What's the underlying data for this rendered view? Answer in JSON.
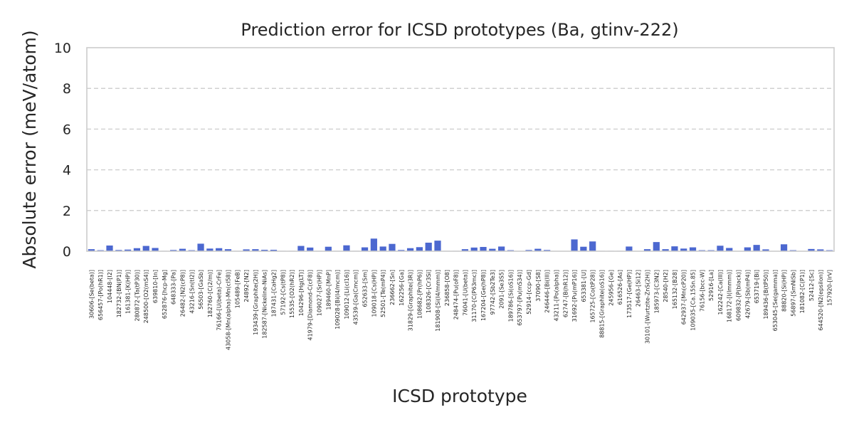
{
  "chart_data": {
    "type": "bar",
    "title": "Prediction error for ICSD prototypes (Ba, gtinv-222)",
    "xlabel": "ICSD prototype",
    "ylabel": "Absolute error (meV/atom)",
    "ylim": [
      0,
      10
    ],
    "yticks": [
      0,
      2,
      4,
      6,
      8,
      10
    ],
    "grid": true,
    "bar_color": "#4c68d0",
    "grid_color": "#cccccc",
    "categories": [
      "30606-[Se(beta)]",
      "656457-[Po(hR1)]",
      "104448-[I2]",
      "182732-[BN(P1)]",
      "161381-[K(HP)]",
      "280872-[Ta(tP30)]",
      "248500-[O2(mS4)]",
      "639810-[In]",
      "652876-[hcp-Mg]",
      "648333-[Pa]",
      "26482-[N2(cP8)]",
      "43216-[Sn(tI2)]",
      "56503-[GaSb]",
      "182760-[C(2/m)]",
      "76166-[U(beta)-CrFe]",
      "43058-[Mn(alpha)-Mn(cI58)]",
      "105489-[FeB]",
      "24892-[N2]",
      "193439-[Graphite(2H)]",
      "182587-[Nickeline-NiAs]",
      "187431-[CaHg2]",
      "57192-[Cs(tP8)]",
      "15535-[O2(hR2)]",
      "104296-[Hg(LT)]",
      "41979-[Diamond-C(cF8)]",
      "109027-[Sr(HP)]",
      "189460-[MnP]",
      "109028-[Bi(I4/mcm)]",
      "109012-[Li(cI16)]",
      "43539-[Ga(Cmcm)]",
      "652633-[Sm]",
      "109018-[Cs(HP)]",
      "52501-[Te(mP4)]",
      "236662-[Sn]",
      "162256-[Ga]",
      "31829-[Graphite(3R)]",
      "108682-[Pr(hP6)]",
      "108326-[Cr3Si]",
      "181908-[Si(I4/mmm)]",
      "236858-[O8]",
      "248474-[Pu(oF8)]",
      "76041-[U(beta)]",
      "31170-[C(P63mc)]",
      "167204-[Ge(hP8)]",
      "97742-[Sb2Te3]",
      "2091-[Se3S5]",
      "189786-[Si(oS16)]",
      "653797-[Pu(mS34)]",
      "52914-[ccp-Gd]",
      "37090-[S8]",
      "246446-[Bi(III)]",
      "43211-[Po(alpha)]",
      "62747-[B(hR12)]",
      "31692-[Pu(mP16)]",
      "653381-[U]",
      "165725-[Co(tP28)]",
      "88815-[Graphite(oS16)]",
      "245956-[Ge]",
      "616526-[As]",
      "173517-[Ge(HP)]",
      "26463-[Si12]",
      "30101-[Wurtzite-ZnS(2H)]",
      "185973-[C3N2]",
      "28540-[H2]",
      "165132-[B28]",
      "642937-[Mn(cP20)]",
      "109035-[Ca.15Sn.85]",
      "76156-[bcc-W]",
      "52916-[La]",
      "162242-[Ca(III)]",
      "168172-[I(Immm)]",
      "609832-[P(black)]",
      "42679-[Sb(mP4)]",
      "653719-[Bi]",
      "189436-[B(tP50)]",
      "653045-[Se(gamma)]",
      "88820-[Si(HP)]",
      "56897-[SmNiSb]",
      "181082-[C(P1)]",
      "52412-[Sc]",
      "644520-[N2(epsilon)]",
      "157920-[IrV]"
    ],
    "values": [
      0.1,
      0.05,
      0.28,
      0.06,
      0.08,
      0.15,
      0.26,
      0.16,
      0.02,
      0.06,
      0.12,
      0.05,
      0.37,
      0.13,
      0.15,
      0.1,
      0.02,
      0.09,
      0.1,
      0.07,
      0.07,
      0.02,
      0.02,
      0.26,
      0.18,
      0.02,
      0.22,
      0.02,
      0.29,
      0.02,
      0.19,
      0.62,
      0.23,
      0.36,
      0.06,
      0.15,
      0.2,
      0.42,
      0.52,
      0.02,
      0.02,
      0.1,
      0.18,
      0.21,
      0.12,
      0.23,
      0.05,
      0.01,
      0.06,
      0.12,
      0.06,
      0.01,
      0.01,
      0.58,
      0.22,
      0.48,
      0.02,
      0.02,
      0.02,
      0.23,
      0.01,
      0.1,
      0.45,
      0.1,
      0.24,
      0.13,
      0.19,
      0.05,
      0.05,
      0.27,
      0.16,
      0.01,
      0.19,
      0.31,
      0.09,
      0.01,
      0.34,
      0.05,
      0.01,
      0.11,
      0.09,
      0.05
    ]
  }
}
